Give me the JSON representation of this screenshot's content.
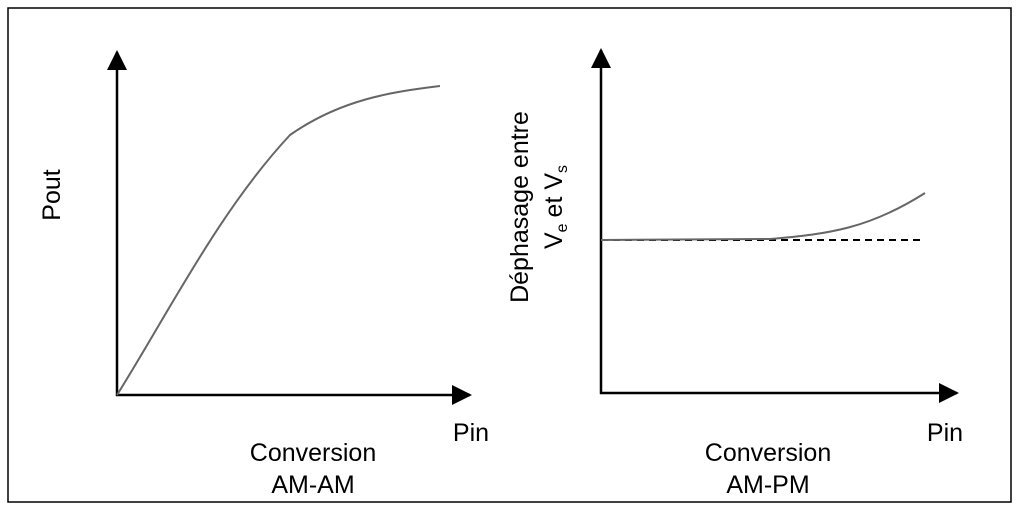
{
  "panels": [
    {
      "y_label": "Pout",
      "x_label": "Pin",
      "caption": [
        "Conversion",
        "AM-AM"
      ]
    },
    {
      "y_label": {
        "line1": "Déphasage entre",
        "line2": [
          "V",
          "e",
          "et V",
          "s"
        ]
      },
      "x_label": "Pin",
      "caption": [
        "Conversion",
        "AM-PM"
      ]
    }
  ]
}
